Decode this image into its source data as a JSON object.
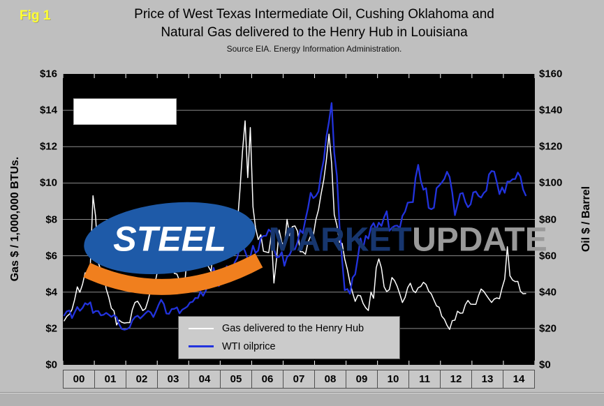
{
  "fig_label": "Fig 1",
  "title": {
    "line1": "Price of West Texas Intermediate Oil, Cushing Oklahoma and",
    "line2": "Natural Gas delivered to the Henry Hub in Louisiana",
    "subtitle": "Source EIA. Energy Information Administration."
  },
  "logo": {
    "word1": "STEEL",
    "word2": "MARKET",
    "word3": "UPDATE"
  },
  "legend": {
    "gas_label": "Gas delivered to the Henry Hub",
    "oil_label": "WTI oilprice"
  },
  "colors": {
    "page_bg": "#BFBFBF",
    "plot_bg": "#000000",
    "gas_line": "#FFFFFF",
    "oil_line": "#2233DD",
    "gridline": "#8C8C8C",
    "fig_label": "#FFFF33",
    "legend_bg": "#CBCBCB",
    "year_cell_bg": "#C8C8C8",
    "logo_blue": "#1E5AA8",
    "logo_navy": "#17366E",
    "logo_gray": "#999999",
    "logo_orange": "#F07F1E"
  },
  "chart_data": {
    "type": "line",
    "title": "Price of West Texas Intermediate Oil, Cushing Oklahoma and Natural Gas delivered to the Henry Hub in Louisiana",
    "subtitle": "Source EIA. Energy Information Administration.",
    "frequency": "monthly",
    "start": "2000-01",
    "end": "2014-09",
    "grid": "horizontal",
    "legend_position": "inside-bottom-center",
    "x": {
      "span_years": 15,
      "tick_labels": [
        "00",
        "01",
        "02",
        "03",
        "04",
        "05",
        "06",
        "07",
        "08",
        "09",
        "10",
        "11",
        "12",
        "13",
        "14"
      ]
    },
    "left_y": {
      "label": "Gas $ / 1,000,000 BTUs.",
      "min": 0,
      "max": 16,
      "step": 2,
      "ticks": [
        "$0",
        "$2",
        "$4",
        "$6",
        "$8",
        "$10",
        "$12",
        "$14",
        "$16"
      ]
    },
    "right_y": {
      "label": "Oil $ / Barrel",
      "min": 0,
      "max": 160,
      "step": 20,
      "ticks": [
        "$0",
        "$20",
        "$40",
        "$60",
        "$80",
        "$100",
        "$120",
        "$140",
        "$160"
      ]
    },
    "series": [
      {
        "name": "Gas delivered to the Henry Hub",
        "axis": "left",
        "color": "#FFFFFF",
        "width": 1.5,
        "values": [
          2.42,
          2.66,
          2.79,
          3.04,
          3.59,
          4.29,
          3.99,
          4.43,
          5.06,
          5.02,
          5.52,
          9.3,
          8.17,
          5.61,
          5.23,
          5.19,
          4.19,
          3.72,
          3.11,
          2.97,
          2.19,
          2.46,
          2.34,
          2.3,
          2.32,
          2.32,
          3.03,
          3.43,
          3.5,
          3.26,
          2.99,
          3.09,
          3.55,
          4.13,
          4.04,
          4.74,
          5.43,
          7.71,
          5.93,
          5.26,
          5.81,
          5.82,
          5.03,
          4.99,
          4.62,
          4.63,
          4.47,
          6.13,
          6.14,
          5.37,
          5.39,
          5.71,
          6.33,
          6.27,
          5.93,
          5.41,
          5.15,
          6.35,
          6.17,
          6.58,
          6.15,
          6.14,
          6.96,
          7.16,
          6.47,
          7.18,
          7.63,
          9.53,
          11.75,
          13.42,
          10.3,
          13.05,
          8.69,
          7.54,
          6.89,
          7.16,
          6.25,
          6.21,
          6.17,
          7.14,
          4.5,
          5.85,
          7.41,
          6.73,
          6.55,
          8.0,
          7.11,
          7.6,
          7.64,
          7.35,
          6.22,
          6.22,
          6.08,
          6.74,
          7.1,
          7.11,
          7.99,
          8.54,
          9.41,
          10.18,
          11.27,
          12.69,
          11.09,
          8.26,
          7.67,
          6.74,
          6.68,
          5.82,
          5.24,
          4.51,
          3.96,
          3.49,
          3.83,
          3.8,
          3.38,
          3.14,
          2.99,
          4.0,
          3.66,
          5.34,
          5.83,
          5.32,
          4.29,
          4.03,
          4.14,
          4.8,
          4.63,
          4.32,
          3.89,
          3.43,
          3.71,
          4.25,
          4.49,
          4.09,
          3.97,
          4.24,
          4.31,
          4.54,
          4.42,
          4.06,
          3.9,
          3.57,
          3.24,
          3.17,
          2.67,
          2.51,
          2.17,
          1.95,
          2.43,
          2.46,
          2.95,
          2.84,
          2.85,
          3.32,
          3.54,
          3.34,
          3.33,
          3.33,
          3.81,
          4.17,
          4.04,
          3.83,
          3.62,
          3.43,
          3.62,
          3.68,
          3.64,
          4.24,
          4.71,
          6.5,
          4.9,
          4.66,
          4.58,
          4.59,
          4.05,
          3.91,
          3.92
        ]
      },
      {
        "name": "WTI oilprice",
        "axis": "right",
        "color": "#2233DD",
        "width": 2.3,
        "values": [
          27.2,
          29.4,
          29.9,
          25.7,
          28.8,
          31.8,
          29.7,
          31.3,
          33.9,
          33.1,
          34.4,
          28.5,
          29.6,
          29.6,
          27.2,
          27.5,
          28.6,
          27.6,
          26.4,
          27.4,
          26.2,
          22.2,
          19.7,
          19.3,
          19.7,
          20.7,
          24.4,
          26.3,
          27.0,
          25.5,
          26.9,
          28.4,
          29.7,
          28.9,
          26.3,
          29.4,
          33.0,
          35.8,
          33.5,
          28.2,
          28.1,
          30.7,
          30.8,
          31.6,
          28.3,
          30.3,
          31.1,
          32.1,
          34.3,
          34.7,
          36.8,
          36.7,
          40.3,
          38.0,
          40.8,
          44.9,
          46.0,
          53.3,
          48.5,
          43.3,
          46.8,
          48.0,
          54.3,
          53.0,
          49.8,
          56.3,
          58.7,
          65.0,
          65.6,
          62.4,
          58.3,
          59.4,
          65.5,
          61.6,
          62.9,
          69.7,
          70.9,
          71.0,
          74.4,
          73.1,
          63.9,
          59.1,
          59.4,
          62.0,
          54.5,
          59.3,
          60.6,
          64.0,
          63.5,
          67.5,
          74.2,
          72.4,
          79.9,
          86.2,
          94.6,
          91.7,
          92.9,
          95.4,
          105.5,
          112.6,
          125.4,
          133.9,
          144.0,
          116.7,
          103.9,
          76.7,
          57.4,
          41.0,
          41.7,
          39.1,
          48.0,
          49.8,
          59.0,
          69.6,
          64.1,
          71.0,
          69.4,
          75.8,
          78.0,
          74.3,
          78.2,
          76.4,
          81.2,
          84.5,
          73.7,
          75.4,
          76.4,
          76.6,
          75.3,
          81.9,
          84.3,
          89.2,
          89.4,
          89.5,
          102.9,
          110.0,
          101.3,
          96.3,
          97.2,
          86.3,
          85.6,
          86.4,
          97.2,
          98.6,
          100.3,
          102.3,
          106.2,
          103.3,
          94.7,
          82.3,
          87.9,
          94.1,
          94.5,
          89.5,
          86.7,
          88.3,
          94.8,
          95.3,
          92.9,
          92.0,
          94.5,
          95.8,
          104.7,
          106.6,
          106.3,
          100.5,
          93.9,
          97.6,
          94.6,
          100.8,
          100.8,
          102.1,
          102.2,
          105.8,
          103.6,
          96.5,
          93.2
        ]
      }
    ]
  }
}
